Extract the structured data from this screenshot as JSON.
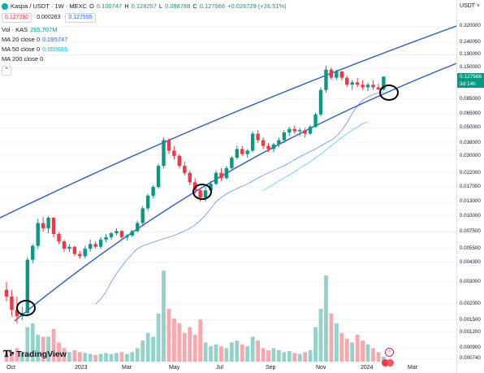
{
  "header": {
    "symbol_title": "Kaspa / USDT · 1W · MEXC",
    "ohlc": {
      "o_label": "O",
      "o": "0.100747",
      "h_label": "H",
      "h": "0.128257",
      "l_label": "L",
      "l": "0.098788",
      "c_label": "C",
      "c": "0.127566",
      "change": "+0.026729 (+26.51%)"
    },
    "bid": "0.127292",
    "spread": "0.000263",
    "ask": "0.127555",
    "volume_label": "Vol · KAS",
    "volume_value": "265.707M",
    "ma20_label": "MA 20 close 0",
    "ma20_value": "0.095747",
    "ma50_label": "MA 50 close 0",
    "ma50_value": "0.055665",
    "ma200_label": "MA 200 close 0"
  },
  "price_scale": {
    "currency": "USDT",
    "ticks": [
      "0.320000",
      "0.240000",
      "0.190000",
      "0.150000",
      "0.085000",
      "0.065000",
      "0.050000",
      "0.038000",
      "0.030000",
      "0.022000",
      "0.017000",
      "0.013000",
      "0.010000",
      "0.007500",
      "0.005500",
      "0.004300",
      "0.003000",
      "0.002000",
      "0.001500",
      "0.001200",
      "0.000900",
      "0.000740"
    ],
    "current_price": "0.127566",
    "countdown": "3d 14h"
  },
  "time_scale": {
    "labels": [
      "Oct",
      "2023",
      "Mar",
      "May",
      "Jul",
      "Sep",
      "Nov",
      "2024",
      "Mar"
    ]
  },
  "branding": {
    "name": "TradingView"
  },
  "colors": {
    "up": "#089981",
    "down": "#f23645",
    "up_vol": "#93d2c8",
    "down_vol": "#f7a8ad",
    "channel": "#2a5ad7",
    "ma20": "#2962ff",
    "ma50": "#66d0f0"
  },
  "chart_data": {
    "type": "candlestick",
    "title": "Kaspa / USDT · 1W · MEXC",
    "scale": "log",
    "ylim": [
      0.0007,
      0.42
    ],
    "x_labels": [
      "Oct",
      "2023",
      "Mar",
      "May",
      "Jul",
      "Sep",
      "Nov",
      "2024",
      "Mar"
    ],
    "candles": [
      {
        "o": 0.0026,
        "h": 0.003,
        "l": 0.0021,
        "c": 0.0023,
        "v": 8
      },
      {
        "o": 0.0023,
        "h": 0.0026,
        "l": 0.0016,
        "c": 0.0018,
        "v": 10
      },
      {
        "o": 0.0018,
        "h": 0.0023,
        "l": 0.0014,
        "c": 0.0016,
        "v": 14
      },
      {
        "o": 0.0016,
        "h": 0.0019,
        "l": 0.0015,
        "c": 0.0017,
        "v": 10
      },
      {
        "o": 0.0017,
        "h": 0.0047,
        "l": 0.0016,
        "c": 0.0045,
        "v": 36
      },
      {
        "o": 0.0045,
        "h": 0.006,
        "l": 0.0042,
        "c": 0.0058,
        "v": 40
      },
      {
        "o": 0.0058,
        "h": 0.0095,
        "l": 0.0055,
        "c": 0.0088,
        "v": 28
      },
      {
        "o": 0.0088,
        "h": 0.0098,
        "l": 0.0075,
        "c": 0.008,
        "v": 26
      },
      {
        "o": 0.008,
        "h": 0.01,
        "l": 0.0073,
        "c": 0.0097,
        "v": 26
      },
      {
        "o": 0.0097,
        "h": 0.0098,
        "l": 0.0068,
        "c": 0.0072,
        "v": 34
      },
      {
        "o": 0.0072,
        "h": 0.0075,
        "l": 0.006,
        "c": 0.0063,
        "v": 20
      },
      {
        "o": 0.0063,
        "h": 0.0065,
        "l": 0.0052,
        "c": 0.0055,
        "v": 14
      },
      {
        "o": 0.0055,
        "h": 0.006,
        "l": 0.0052,
        "c": 0.0057,
        "v": 10
      },
      {
        "o": 0.0057,
        "h": 0.0058,
        "l": 0.0048,
        "c": 0.005,
        "v": 12
      },
      {
        "o": 0.005,
        "h": 0.0053,
        "l": 0.0046,
        "c": 0.0048,
        "v": 10
      },
      {
        "o": 0.0048,
        "h": 0.0058,
        "l": 0.0046,
        "c": 0.0055,
        "v": 9
      },
      {
        "o": 0.0055,
        "h": 0.0065,
        "l": 0.0052,
        "c": 0.006,
        "v": 8
      },
      {
        "o": 0.006,
        "h": 0.0063,
        "l": 0.0055,
        "c": 0.0057,
        "v": 7
      },
      {
        "o": 0.0057,
        "h": 0.0068,
        "l": 0.0055,
        "c": 0.0065,
        "v": 8
      },
      {
        "o": 0.0065,
        "h": 0.0072,
        "l": 0.0062,
        "c": 0.0068,
        "v": 9
      },
      {
        "o": 0.0068,
        "h": 0.0075,
        "l": 0.0065,
        "c": 0.0073,
        "v": 8
      },
      {
        "o": 0.0073,
        "h": 0.008,
        "l": 0.007,
        "c": 0.0076,
        "v": 9
      },
      {
        "o": 0.0076,
        "h": 0.0078,
        "l": 0.0066,
        "c": 0.0068,
        "v": 10
      },
      {
        "o": 0.0068,
        "h": 0.0072,
        "l": 0.0064,
        "c": 0.007,
        "v": 8
      },
      {
        "o": 0.007,
        "h": 0.0078,
        "l": 0.0068,
        "c": 0.0076,
        "v": 10
      },
      {
        "o": 0.0076,
        "h": 0.0092,
        "l": 0.0074,
        "c": 0.0088,
        "v": 14
      },
      {
        "o": 0.0088,
        "h": 0.012,
        "l": 0.0085,
        "c": 0.0115,
        "v": 22
      },
      {
        "o": 0.0115,
        "h": 0.015,
        "l": 0.011,
        "c": 0.0145,
        "v": 30
      },
      {
        "o": 0.0145,
        "h": 0.0175,
        "l": 0.0138,
        "c": 0.017,
        "v": 26
      },
      {
        "o": 0.017,
        "h": 0.026,
        "l": 0.0165,
        "c": 0.025,
        "v": 50
      },
      {
        "o": 0.025,
        "h": 0.042,
        "l": 0.024,
        "c": 0.04,
        "v": 95
      },
      {
        "o": 0.04,
        "h": 0.0415,
        "l": 0.031,
        "c": 0.033,
        "v": 55
      },
      {
        "o": 0.033,
        "h": 0.036,
        "l": 0.028,
        "c": 0.03,
        "v": 45
      },
      {
        "o": 0.03,
        "h": 0.031,
        "l": 0.024,
        "c": 0.025,
        "v": 40
      },
      {
        "o": 0.025,
        "h": 0.027,
        "l": 0.021,
        "c": 0.022,
        "v": 30
      },
      {
        "o": 0.022,
        "h": 0.023,
        "l": 0.0175,
        "c": 0.0185,
        "v": 36
      },
      {
        "o": 0.0185,
        "h": 0.02,
        "l": 0.015,
        "c": 0.016,
        "v": 28
      },
      {
        "o": 0.016,
        "h": 0.0165,
        "l": 0.013,
        "c": 0.014,
        "v": 44
      },
      {
        "o": 0.014,
        "h": 0.017,
        "l": 0.013,
        "c": 0.016,
        "v": 20
      },
      {
        "o": 0.016,
        "h": 0.019,
        "l": 0.015,
        "c": 0.018,
        "v": 16
      },
      {
        "o": 0.018,
        "h": 0.023,
        "l": 0.0175,
        "c": 0.022,
        "v": 18
      },
      {
        "o": 0.022,
        "h": 0.024,
        "l": 0.019,
        "c": 0.02,
        "v": 16
      },
      {
        "o": 0.02,
        "h": 0.025,
        "l": 0.0195,
        "c": 0.024,
        "v": 14
      },
      {
        "o": 0.024,
        "h": 0.03,
        "l": 0.0235,
        "c": 0.029,
        "v": 20
      },
      {
        "o": 0.029,
        "h": 0.036,
        "l": 0.028,
        "c": 0.034,
        "v": 22
      },
      {
        "o": 0.034,
        "h": 0.036,
        "l": 0.03,
        "c": 0.031,
        "v": 18
      },
      {
        "o": 0.031,
        "h": 0.034,
        "l": 0.029,
        "c": 0.033,
        "v": 16
      },
      {
        "o": 0.033,
        "h": 0.047,
        "l": 0.032,
        "c": 0.045,
        "v": 26
      },
      {
        "o": 0.045,
        "h": 0.048,
        "l": 0.038,
        "c": 0.04,
        "v": 22
      },
      {
        "o": 0.04,
        "h": 0.042,
        "l": 0.034,
        "c": 0.036,
        "v": 14
      },
      {
        "o": 0.036,
        "h": 0.038,
        "l": 0.032,
        "c": 0.034,
        "v": 12
      },
      {
        "o": 0.034,
        "h": 0.038,
        "l": 0.032,
        "c": 0.037,
        "v": 14
      },
      {
        "o": 0.037,
        "h": 0.042,
        "l": 0.035,
        "c": 0.04,
        "v": 12
      },
      {
        "o": 0.04,
        "h": 0.048,
        "l": 0.038,
        "c": 0.046,
        "v": 10
      },
      {
        "o": 0.046,
        "h": 0.051,
        "l": 0.043,
        "c": 0.049,
        "v": 11
      },
      {
        "o": 0.049,
        "h": 0.052,
        "l": 0.045,
        "c": 0.047,
        "v": 9
      },
      {
        "o": 0.047,
        "h": 0.05,
        "l": 0.043,
        "c": 0.048,
        "v": 8
      },
      {
        "o": 0.048,
        "h": 0.05,
        "l": 0.042,
        "c": 0.045,
        "v": 10
      },
      {
        "o": 0.045,
        "h": 0.053,
        "l": 0.044,
        "c": 0.051,
        "v": 12
      },
      {
        "o": 0.051,
        "h": 0.066,
        "l": 0.05,
        "c": 0.064,
        "v": 36
      },
      {
        "o": 0.064,
        "h": 0.105,
        "l": 0.062,
        "c": 0.1,
        "v": 55
      },
      {
        "o": 0.1,
        "h": 0.155,
        "l": 0.095,
        "c": 0.145,
        "v": 90
      },
      {
        "o": 0.145,
        "h": 0.15,
        "l": 0.12,
        "c": 0.125,
        "v": 50
      },
      {
        "o": 0.125,
        "h": 0.145,
        "l": 0.12,
        "c": 0.14,
        "v": 40
      },
      {
        "o": 0.14,
        "h": 0.142,
        "l": 0.12,
        "c": 0.125,
        "v": 30
      },
      {
        "o": 0.125,
        "h": 0.13,
        "l": 0.105,
        "c": 0.11,
        "v": 24
      },
      {
        "o": 0.11,
        "h": 0.12,
        "l": 0.1,
        "c": 0.115,
        "v": 20
      },
      {
        "o": 0.115,
        "h": 0.125,
        "l": 0.105,
        "c": 0.11,
        "v": 28
      },
      {
        "o": 0.11,
        "h": 0.12,
        "l": 0.1,
        "c": 0.105,
        "v": 22
      },
      {
        "o": 0.105,
        "h": 0.115,
        "l": 0.098,
        "c": 0.11,
        "v": 18
      },
      {
        "o": 0.11,
        "h": 0.12,
        "l": 0.1,
        "c": 0.105,
        "v": 14
      },
      {
        "o": 0.105,
        "h": 0.112,
        "l": 0.099,
        "c": 0.101,
        "v": 10
      },
      {
        "o": 0.1007,
        "h": 0.1283,
        "l": 0.0988,
        "c": 0.1276,
        "v": 5
      }
    ],
    "series": [
      {
        "name": "MA 20 close 0",
        "values": [
          0.002,
          0.0022,
          0.0025,
          0.003,
          0.0035,
          0.004,
          0.0045,
          0.005,
          0.0055,
          0.0058,
          0.006,
          0.0062,
          0.0064,
          0.0066,
          0.0068,
          0.007,
          0.0073,
          0.0076,
          0.008,
          0.0085,
          0.0092,
          0.0102,
          0.0115,
          0.013,
          0.014,
          0.015,
          0.0158,
          0.0165,
          0.0172,
          0.018,
          0.019,
          0.02,
          0.021,
          0.022,
          0.023,
          0.024,
          0.025,
          0.0265,
          0.028,
          0.0295,
          0.031,
          0.0325,
          0.034,
          0.036,
          0.038,
          0.04,
          0.043,
          0.048,
          0.055,
          0.065,
          0.075,
          0.083,
          0.088,
          0.092,
          0.095,
          0.0957
        ]
      },
      {
        "name": "MA 50 close 0",
        "values": [
          0.016,
          0.0168,
          0.0178,
          0.019,
          0.02,
          0.0212,
          0.0225,
          0.024,
          0.0255,
          0.027,
          0.029,
          0.031,
          0.0335,
          0.036,
          0.039,
          0.042,
          0.045,
          0.048,
          0.051,
          0.054,
          0.0557
        ]
      }
    ],
    "annotations": [
      "trend channel upper line",
      "trend channel lower line",
      "support touch circles"
    ]
  }
}
